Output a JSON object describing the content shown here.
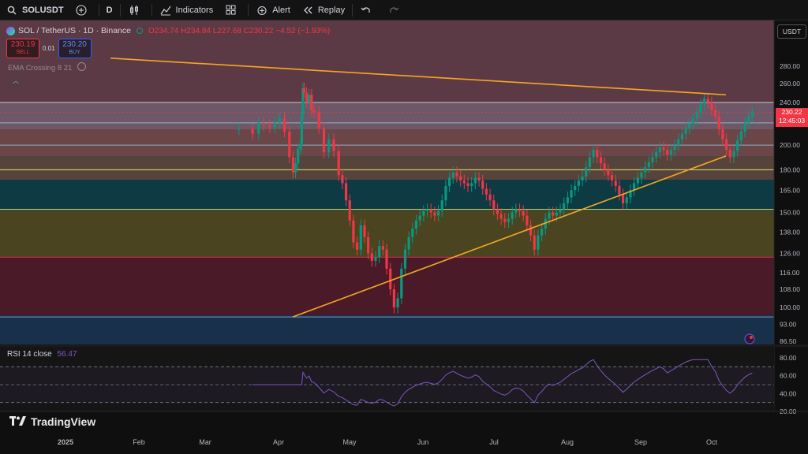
{
  "toolbar": {
    "symbol": "SOLUSDT",
    "interval": "D",
    "indicators": "Indicators",
    "alert": "Alert",
    "replay": "Replay"
  },
  "legend": {
    "title": "SOL / TetherUS · 1D · Binance",
    "o": "O234.74",
    "h": "H234.84",
    "l": "L227.68",
    "c": "C230.22",
    "chg": "−4.52 (−1.93%)"
  },
  "trade": {
    "sell": "230.19",
    "sell_label": "SELL",
    "spread": "0.01",
    "buy": "230.20",
    "buy_label": "BUY"
  },
  "ema_label": "EMA Crossing 8 21",
  "rsi": {
    "label": "RSI 14 close",
    "value": "56.47"
  },
  "currency": "USDT",
  "last_price": {
    "price": "230.22",
    "countdown": "12:45:03"
  },
  "brand": "TradingView",
  "colors": {
    "up": "#089981",
    "down": "#f23645",
    "trend": "#f5a623",
    "rsi": "#7e57c2"
  },
  "chart_data": {
    "type": "candlestick",
    "scale": "log",
    "y_ticks": [
      280,
      260,
      240,
      220,
      200,
      180,
      165,
      150,
      138,
      126,
      116,
      108,
      100,
      93,
      86.5
    ],
    "y_tick_labels": [
      "280.00",
      "260.00",
      "240.00",
      "220.00",
      "200.00",
      "180.00",
      "165.00",
      "150.00",
      "138.00",
      "126.00",
      "116.00",
      "108.00",
      "100.00",
      "93.00",
      "86.50"
    ],
    "x_labels": [
      "2025",
      "Feb",
      "Mar",
      "Apr",
      "May",
      "Jun",
      "Jul",
      "Aug",
      "Sep",
      "Oct"
    ],
    "x_label_dates": [
      "2025-01-01",
      "2025-02-01",
      "2025-03-01",
      "2025-04-01",
      "2025-05-01",
      "2025-06-01",
      "2025-07-01",
      "2025-08-01",
      "2025-09-01",
      "2025-10-01"
    ],
    "start_date": "2024-12-20",
    "closes": [
      [
        189,
        214
      ],
      [
        200,
        210
      ],
      [
        205,
        220
      ],
      [
        209,
        218
      ],
      [
        214,
        216
      ],
      [
        218,
        220
      ],
      [
        222,
        224
      ],
      [
        226,
        212
      ],
      [
        230,
        190
      ],
      [
        233,
        178
      ],
      [
        235,
        185
      ],
      [
        237,
        197
      ],
      [
        239,
        200
      ],
      [
        240,
        228
      ],
      [
        241,
        255
      ],
      [
        242,
        250
      ],
      [
        244,
        240
      ],
      [
        246,
        248
      ],
      [
        248,
        232
      ],
      [
        250,
        230
      ],
      [
        254,
        215
      ],
      [
        258,
        194
      ],
      [
        262,
        205
      ],
      [
        266,
        195
      ],
      [
        270,
        176
      ],
      [
        273,
        170
      ],
      [
        276,
        158
      ],
      [
        279,
        145
      ],
      [
        282,
        132
      ],
      [
        285,
        128
      ],
      [
        288,
        142
      ],
      [
        291,
        135
      ],
      [
        294,
        126
      ],
      [
        297,
        122
      ],
      [
        300,
        124
      ],
      [
        303,
        130
      ],
      [
        306,
        128
      ],
      [
        309,
        118
      ],
      [
        312,
        108
      ],
      [
        315,
        100
      ],
      [
        318,
        104
      ],
      [
        321,
        118
      ],
      [
        324,
        128
      ],
      [
        327,
        135
      ],
      [
        330,
        140
      ],
      [
        333,
        145
      ],
      [
        336,
        148
      ],
      [
        339,
        151
      ],
      [
        342,
        152
      ],
      [
        345,
        150
      ],
      [
        348,
        148
      ],
      [
        351,
        151
      ],
      [
        354,
        158
      ],
      [
        357,
        168
      ],
      [
        360,
        174
      ],
      [
        363,
        178
      ],
      [
        366,
        175
      ],
      [
        369,
        172
      ],
      [
        372,
        170
      ],
      [
        375,
        168
      ],
      [
        378,
        170
      ],
      [
        381,
        174
      ],
      [
        384,
        172
      ],
      [
        387,
        166
      ],
      [
        390,
        162
      ],
      [
        393,
        158
      ],
      [
        396,
        152
      ],
      [
        399,
        149
      ],
      [
        402,
        146
      ],
      [
        405,
        144
      ],
      [
        408,
        146
      ],
      [
        411,
        150
      ],
      [
        414,
        152
      ],
      [
        417,
        151
      ],
      [
        420,
        148
      ],
      [
        423,
        142
      ],
      [
        426,
        136
      ],
      [
        429,
        128
      ],
      [
        432,
        136
      ],
      [
        435,
        140
      ],
      [
        438,
        146
      ],
      [
        441,
        150
      ],
      [
        444,
        148
      ],
      [
        447,
        150
      ],
      [
        450,
        152
      ],
      [
        453,
        156
      ],
      [
        456,
        160
      ],
      [
        459,
        165
      ],
      [
        462,
        168
      ],
      [
        465,
        172
      ],
      [
        468,
        175
      ],
      [
        471,
        182
      ],
      [
        474,
        190
      ],
      [
        477,
        196
      ],
      [
        480,
        190
      ],
      [
        483,
        185
      ],
      [
        486,
        180
      ],
      [
        489,
        176
      ],
      [
        492,
        172
      ],
      [
        495,
        168
      ],
      [
        498,
        162
      ],
      [
        501,
        156
      ],
      [
        504,
        160
      ],
      [
        507,
        165
      ],
      [
        510,
        170
      ],
      [
        513,
        174
      ],
      [
        516,
        178
      ],
      [
        519,
        182
      ],
      [
        522,
        186
      ],
      [
        525,
        190
      ],
      [
        528,
        194
      ],
      [
        531,
        198
      ],
      [
        534,
        196
      ],
      [
        537,
        192
      ],
      [
        540,
        196
      ],
      [
        543,
        200
      ],
      [
        546,
        205
      ],
      [
        549,
        210
      ],
      [
        552,
        215
      ],
      [
        555,
        219
      ],
      [
        558,
        224
      ],
      [
        561,
        230
      ],
      [
        564,
        238
      ],
      [
        567,
        244
      ],
      [
        570,
        240
      ],
      [
        573,
        232
      ],
      [
        576,
        226
      ],
      [
        579,
        214
      ],
      [
        582,
        205
      ],
      [
        585,
        196
      ],
      [
        588,
        190
      ],
      [
        591,
        195
      ],
      [
        594,
        204
      ],
      [
        597,
        212
      ],
      [
        600,
        220
      ],
      [
        603,
        226
      ],
      [
        606,
        230
      ]
    ],
    "trendlines": [
      {
        "from": [
          "2025-01-20",
          290
        ],
        "to": [
          "2025-10-07",
          248
        ]
      },
      {
        "from": [
          "2025-04-07",
          96
        ],
        "to": [
          "2025-10-07",
          191
        ]
      }
    ],
    "levels": [
      {
        "price": 240
      },
      {
        "price": 220
      },
      {
        "price": 200
      },
      {
        "price": 180
      },
      {
        "price": 152
      },
      {
        "price": 124
      },
      {
        "price": 96
      }
    ],
    "rsi_ticks": [
      80,
      60,
      40,
      20
    ],
    "rsi_levels": [
      70,
      50,
      30
    ]
  }
}
